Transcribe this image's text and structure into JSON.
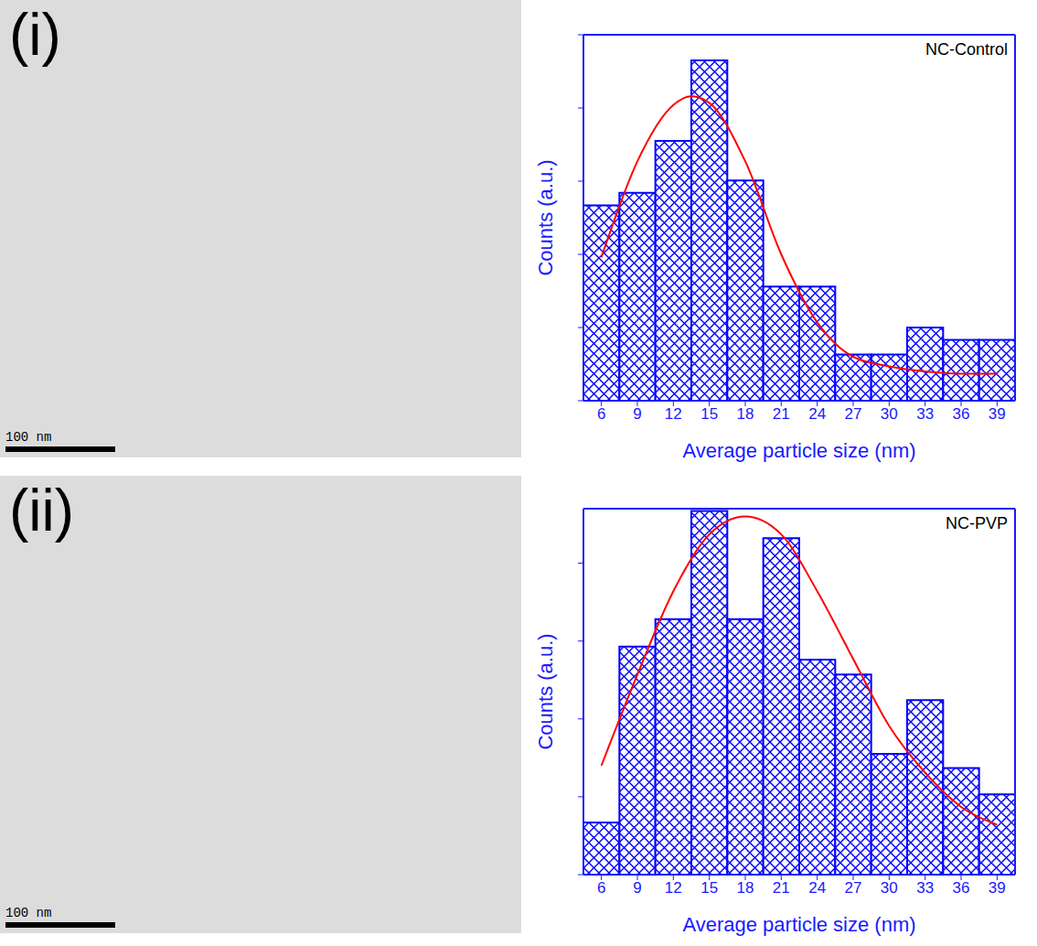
{
  "chart_data": [
    {
      "type": "histogram",
      "label": "(i)",
      "annotations": [
        "100 nm"
      ],
      "xlabel": "Average particle size (nm)",
      "ylabel": "Counts (a.u.)",
      "bins": [
        4.5,
        7.5,
        10.5,
        13.5,
        16.5,
        19.5,
        22.5,
        25.5,
        28.5,
        31.5,
        34.5,
        37.5,
        40.5
      ],
      "series": [
        {
          "name": "NC-Control",
          "type": "bar",
          "color": "#0000ff",
          "values": [
            2.67,
            2.84,
            3.55,
            4.65,
            3.01,
            1.56,
            1.56,
            0.63,
            0.63,
            1.0,
            0.83,
            0.83
          ]
        },
        {
          "type": "line",
          "color": "#ff0000",
          "x": [
            6,
            9,
            12,
            13.5,
            15,
            18,
            21,
            24,
            27,
            30,
            33,
            36,
            39
          ],
          "values": [
            1.96,
            3.27,
            4.04,
            4.16,
            4.07,
            3.27,
            2.0,
            1.07,
            0.6,
            0.47,
            0.4,
            0.37,
            0.37
          ]
        }
      ],
      "xlim": [
        4.5,
        40.5
      ],
      "xticks": [
        6,
        9,
        12,
        15,
        18,
        21,
        24,
        27,
        30,
        33,
        36,
        39
      ],
      "ylim": [
        0,
        5
      ],
      "yticks": [
        0,
        1,
        2,
        3,
        4,
        5
      ],
      "tick_labels": "x",
      "legend": "upper right",
      "grid": false
    },
    {
      "type": "histogram",
      "label": "(ii)",
      "annotations": [
        "100 nm"
      ],
      "xlabel": "Average particle size (nm)",
      "ylabel": "Counts (a.u.)",
      "bins": [
        4.5,
        7.5,
        10.5,
        13.5,
        16.5,
        19.5,
        22.5,
        25.5,
        28.5,
        31.5,
        34.5,
        37.5,
        40.5
      ],
      "series": [
        {
          "name": "NC-PVP",
          "type": "bar",
          "color": "#0000ff",
          "values": [
            0.67,
            2.93,
            3.28,
            4.67,
            3.28,
            4.32,
            2.76,
            2.57,
            1.55,
            2.24,
            1.37,
            1.03
          ]
        },
        {
          "type": "line",
          "color": "#ff0000",
          "x": [
            6,
            9,
            12,
            15,
            18,
            21,
            24,
            27,
            30,
            33,
            36,
            39
          ],
          "values": [
            1.4,
            2.57,
            3.64,
            4.37,
            4.6,
            4.37,
            3.64,
            2.77,
            1.91,
            1.31,
            0.87,
            0.64
          ]
        }
      ],
      "xlim": [
        4.5,
        40.5
      ],
      "xticks": [
        6,
        9,
        12,
        15,
        18,
        21,
        24,
        27,
        30,
        33,
        36,
        39
      ],
      "ylim": [
        0,
        4.7
      ],
      "yticks": [
        0,
        1,
        2,
        3,
        4
      ],
      "tick_labels": "x",
      "legend": "upper right",
      "grid": false
    }
  ]
}
